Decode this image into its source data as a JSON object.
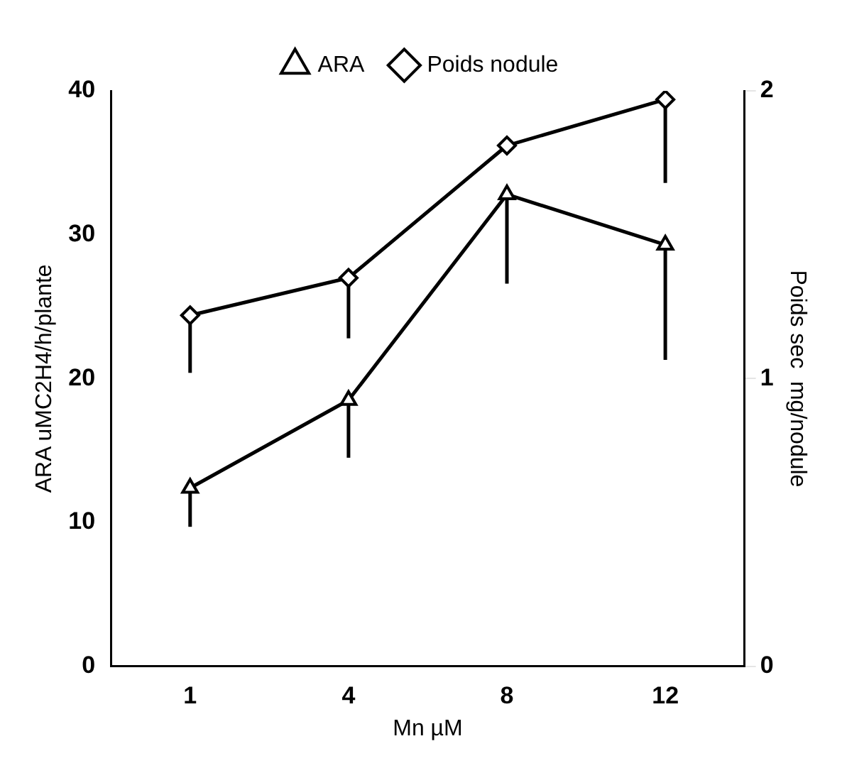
{
  "chart_data": {
    "type": "line",
    "xlabel": "Mn µM",
    "ylabel": "ARA uMC2H4/h/plante",
    "y2label": "Poids sec  mg/nodule",
    "categories": [
      "1",
      "4",
      "8",
      "12"
    ],
    "series": [
      {
        "name": "ARA",
        "color": "#000000",
        "marker": "triangle",
        "values": [
          12.4,
          18.5,
          32.8,
          29.3
        ],
        "errors": [
          [
            9.7,
            12.4
          ],
          [
            14.5,
            18.5
          ],
          [
            26.6,
            32.8
          ],
          [
            21.3,
            29.3
          ]
        ]
      },
      {
        "name": "Poids nodule",
        "color": "#000000",
        "marker": "diamond",
        "axis": "y2",
        "values": [
          1.22,
          1.35,
          1.81,
          1.97
        ],
        "errors": [
          [
            1.02,
            1.22
          ],
          [
            1.14,
            1.35
          ],
          null,
          [
            1.68,
            1.97
          ]
        ]
      }
    ],
    "ylim": [
      0,
      40
    ],
    "yticks": [
      0,
      10,
      20,
      30,
      40
    ],
    "y2lim": [
      0,
      2
    ],
    "y2ticks": [
      0,
      1,
      2
    ],
    "grid": false,
    "legend": "top",
    "line_style": "solid"
  }
}
